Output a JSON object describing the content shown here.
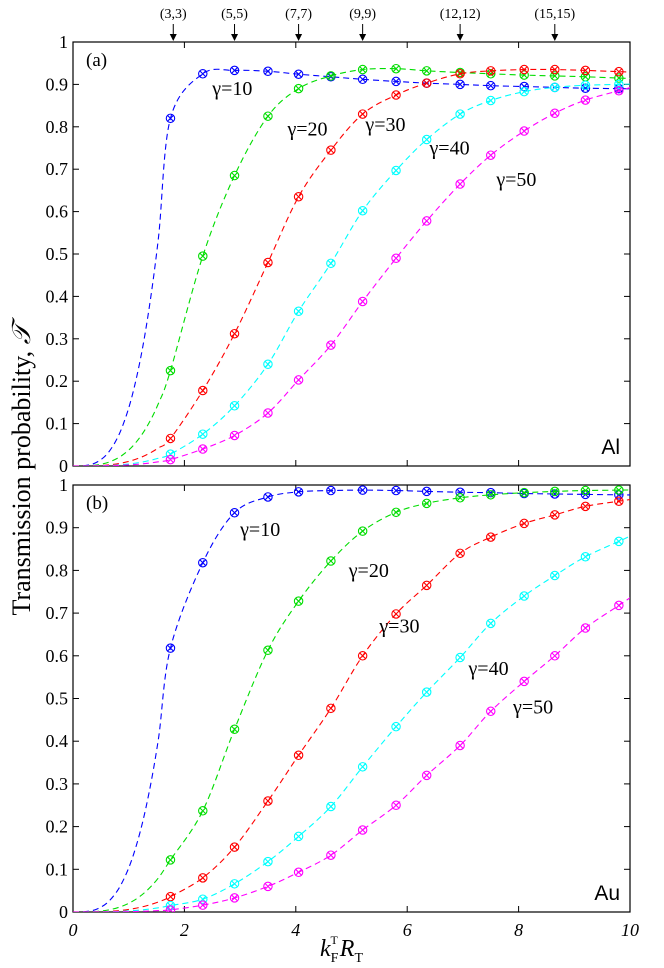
{
  "chart_data": [
    {
      "type": "line",
      "panel_label": "(a)",
      "metal": "Al",
      "xlim": [
        0,
        10
      ],
      "ylim": [
        0,
        1
      ],
      "x_ticks": [
        0,
        2,
        4,
        6,
        8,
        10
      ],
      "y_ticks": [
        0,
        0.1,
        0.2,
        0.3,
        0.4,
        0.5,
        0.6,
        0.7,
        0.8,
        0.9,
        1
      ],
      "y_tick_labels": [
        "0",
        "0.1",
        "0.2",
        "0.3",
        "0.4",
        "0.5",
        "0.6",
        "0.7",
        "0.8",
        "0.9",
        "1"
      ],
      "top_annotations": [
        {
          "label": "(3,3)",
          "x": 1.8
        },
        {
          "label": "(5,5)",
          "x": 2.9
        },
        {
          "label": "(7,7)",
          "x": 4.05
        },
        {
          "label": "(9,9)",
          "x": 5.2
        },
        {
          "label": "(12,12)",
          "x": 6.95
        },
        {
          "label": "(15,15)",
          "x": 8.65
        }
      ],
      "series": [
        {
          "name": "γ=10",
          "color": "#0000ff",
          "x": [
            1.75,
            2.33,
            2.9,
            3.5,
            4.05,
            4.63,
            5.2,
            5.8,
            6.35,
            6.95,
            7.5,
            8.1,
            8.65,
            9.2,
            9.8
          ],
          "y": [
            0.82,
            0.925,
            0.933,
            0.931,
            0.924,
            0.918,
            0.912,
            0.907,
            0.903,
            0.9,
            0.897,
            0.895,
            0.893,
            0.891,
            0.89
          ],
          "label_pos": [
            2.5,
            0.875
          ]
        },
        {
          "name": "γ=20",
          "color": "#00dd00",
          "x": [
            1.75,
            2.33,
            2.9,
            3.5,
            4.05,
            4.63,
            5.2,
            5.8,
            6.35,
            6.95,
            7.5,
            8.1,
            8.65,
            9.2,
            9.8
          ],
          "y": [
            0.225,
            0.495,
            0.685,
            0.825,
            0.89,
            0.92,
            0.935,
            0.937,
            0.932,
            0.928,
            0.925,
            0.922,
            0.92,
            0.918,
            0.915
          ],
          "label_pos": [
            3.85,
            0.78
          ]
        },
        {
          "name": "γ=30",
          "color": "#ff0000",
          "x": [
            1.75,
            2.33,
            2.9,
            3.5,
            4.05,
            4.63,
            5.2,
            5.8,
            6.35,
            6.95,
            7.5,
            8.1,
            8.65,
            9.2,
            9.8
          ],
          "y": [
            0.065,
            0.178,
            0.312,
            0.48,
            0.635,
            0.745,
            0.83,
            0.875,
            0.903,
            0.925,
            0.932,
            0.935,
            0.935,
            0.933,
            0.93
          ],
          "label_pos": [
            5.25,
            0.79
          ]
        },
        {
          "name": "γ=40",
          "color": "#00ffff",
          "x": [
            1.75,
            2.33,
            2.9,
            3.5,
            4.05,
            4.63,
            5.2,
            5.8,
            6.35,
            6.95,
            7.5,
            8.1,
            8.65,
            9.2,
            9.8
          ],
          "y": [
            0.028,
            0.075,
            0.142,
            0.24,
            0.365,
            0.478,
            0.602,
            0.697,
            0.77,
            0.83,
            0.862,
            0.883,
            0.893,
            0.898,
            0.9
          ],
          "label_pos": [
            6.4,
            0.735
          ]
        },
        {
          "name": "γ=50",
          "color": "#ff00ff",
          "x": [
            1.75,
            2.33,
            2.9,
            3.5,
            4.05,
            4.63,
            5.2,
            5.8,
            6.35,
            6.95,
            7.5,
            8.1,
            8.65,
            9.2,
            9.8
          ],
          "y": [
            0.015,
            0.04,
            0.072,
            0.125,
            0.203,
            0.285,
            0.388,
            0.49,
            0.578,
            0.665,
            0.733,
            0.79,
            0.832,
            0.863,
            0.885
          ],
          "label_pos": [
            7.6,
            0.66
          ]
        }
      ]
    },
    {
      "type": "line",
      "panel_label": "(b)",
      "metal": "Au",
      "xlim": [
        0,
        10
      ],
      "ylim": [
        0,
        1
      ],
      "x_ticks": [
        0,
        2,
        4,
        6,
        8,
        10
      ],
      "x_tick_labels": [
        "0",
        "2",
        "4",
        "6",
        "8",
        "10"
      ],
      "y_ticks": [
        0,
        0.1,
        0.2,
        0.3,
        0.4,
        0.5,
        0.6,
        0.7,
        0.8,
        0.9,
        1
      ],
      "y_tick_labels": [
        "0",
        "0.1",
        "0.2",
        "0.3",
        "0.4",
        "0.5",
        "0.6",
        "0.7",
        "0.8",
        "0.9",
        "1"
      ],
      "series": [
        {
          "name": "γ=10",
          "color": "#0000ff",
          "x": [
            1.75,
            2.33,
            2.9,
            3.5,
            4.05,
            4.63,
            5.2,
            5.8,
            6.35,
            6.95,
            7.5,
            8.1,
            8.65,
            9.2,
            9.8
          ],
          "y": [
            0.618,
            0.818,
            0.935,
            0.972,
            0.984,
            0.987,
            0.988,
            0.987,
            0.985,
            0.983,
            0.982,
            0.98,
            0.979,
            0.978,
            0.977
          ],
          "label_pos": [
            3.0,
            0.88
          ]
        },
        {
          "name": "γ=20",
          "color": "#00dd00",
          "x": [
            1.75,
            2.33,
            2.9,
            3.5,
            4.05,
            4.63,
            5.2,
            5.8,
            6.35,
            6.95,
            7.5,
            8.1,
            8.65,
            9.2,
            9.8
          ],
          "y": [
            0.122,
            0.237,
            0.428,
            0.613,
            0.728,
            0.822,
            0.892,
            0.936,
            0.957,
            0.97,
            0.977,
            0.982,
            0.985,
            0.987,
            0.988
          ],
          "label_pos": [
            4.95,
            0.785
          ]
        },
        {
          "name": "γ=30",
          "color": "#ff0000",
          "x": [
            1.75,
            2.33,
            2.9,
            3.5,
            4.05,
            4.63,
            5.2,
            5.8,
            6.35,
            6.95,
            7.5,
            8.1,
            8.65,
            9.2,
            9.8
          ],
          "y": [
            0.036,
            0.08,
            0.152,
            0.26,
            0.367,
            0.477,
            0.6,
            0.698,
            0.765,
            0.84,
            0.878,
            0.91,
            0.93,
            0.95,
            0.962
          ],
          "label_pos": [
            5.5,
            0.655
          ]
        },
        {
          "name": "γ=40",
          "color": "#00ffff",
          "x": [
            1.75,
            2.33,
            2.9,
            3.5,
            4.05,
            4.63,
            5.2,
            5.8,
            6.35,
            6.95,
            7.5,
            8.1,
            8.65,
            9.2,
            9.8
          ],
          "y": [
            0.015,
            0.03,
            0.066,
            0.118,
            0.177,
            0.247,
            0.34,
            0.434,
            0.515,
            0.596,
            0.676,
            0.74,
            0.788,
            0.832,
            0.868
          ],
          "label_pos": [
            7.1,
            0.555
          ]
        },
        {
          "name": "γ=50",
          "color": "#ff00ff",
          "x": [
            1.75,
            2.33,
            2.9,
            3.5,
            4.05,
            4.63,
            5.2,
            5.8,
            6.35,
            6.95,
            7.5,
            8.1,
            8.65,
            9.2,
            9.8
          ],
          "y": [
            0.005,
            0.016,
            0.033,
            0.06,
            0.093,
            0.133,
            0.192,
            0.25,
            0.32,
            0.39,
            0.47,
            0.54,
            0.6,
            0.665,
            0.718
          ],
          "label_pos": [
            7.9,
            0.465
          ]
        }
      ]
    }
  ],
  "axes": {
    "ylabel": "Transmission probability, ",
    "ylabel_symbol": "𝒯",
    "xlabel_k": "k",
    "xlabel_k_sub": "F",
    "xlabel_k_sup": "T",
    "xlabel_R": "R",
    "xlabel_R_sub": "T"
  }
}
